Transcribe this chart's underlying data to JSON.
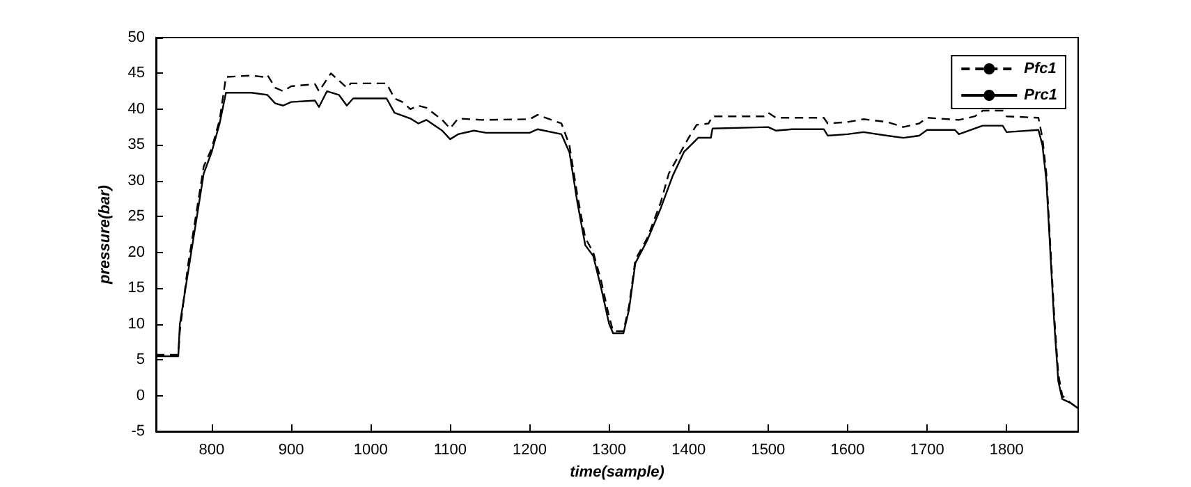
{
  "chart_data": {
    "type": "line",
    "xlabel": "time(sample)",
    "ylabel": "pressure(bar)",
    "xlim": [
      730,
      1890
    ],
    "xticks": [
      800,
      900,
      1000,
      1100,
      1200,
      1300,
      1400,
      1500,
      1600,
      1700,
      1800
    ],
    "ylim": [
      -5,
      50
    ],
    "yticks": [
      -5,
      0,
      5,
      10,
      15,
      20,
      25,
      30,
      35,
      40,
      45,
      50
    ],
    "grid": false,
    "legend": "top right",
    "marker": "none",
    "series": [
      {
        "name": "Pfc1",
        "color": "#000000",
        "line_style": "dashed",
        "x": [
          730,
          758,
          760,
          770,
          780,
          790,
          800,
          810,
          818,
          850,
          865,
          870,
          880,
          890,
          900,
          930,
          935,
          950,
          960,
          970,
          975,
          1020,
          1030,
          1040,
          1050,
          1060,
          1070,
          1090,
          1100,
          1110,
          1140,
          1200,
          1210,
          1240,
          1250,
          1260,
          1270,
          1280,
          1290,
          1300,
          1305,
          1318,
          1325,
          1333,
          1348,
          1365,
          1375,
          1390,
          1400,
          1410,
          1425,
          1430,
          1495,
          1500,
          1510,
          1530,
          1570,
          1575,
          1600,
          1620,
          1650,
          1670,
          1690,
          1700,
          1740,
          1760,
          1770,
          1795,
          1800,
          1840,
          1845,
          1850,
          1855,
          1860,
          1865,
          1870,
          1880,
          1890
        ],
        "values": [
          5.7,
          5.7,
          9,
          18,
          25,
          32,
          34.5,
          38.5,
          44.5,
          44.7,
          44.5,
          44.8,
          43,
          42.5,
          43.2,
          43.5,
          42.5,
          45,
          44,
          43,
          43.6,
          43.6,
          41.5,
          41,
          40,
          40.5,
          40.2,
          38.5,
          37.3,
          38.7,
          38.5,
          38.6,
          39.2,
          38,
          35,
          28,
          22,
          20,
          16,
          11,
          9,
          9,
          12.5,
          19,
          22,
          27,
          31,
          34,
          36,
          37.8,
          38,
          39,
          39,
          39.5,
          38.8,
          38.8,
          38.8,
          38,
          38.2,
          38.6,
          38.2,
          37.5,
          38,
          38.8,
          38.5,
          39,
          39.8,
          39.8,
          39,
          38.8,
          36,
          31,
          21,
          11,
          3,
          0,
          -1,
          -1.8
        ]
      },
      {
        "name": "Prc1",
        "color": "#000000",
        "line_style": "solid",
        "x": [
          730,
          758,
          760,
          770,
          780,
          790,
          800,
          810,
          818,
          850,
          870,
          880,
          890,
          900,
          930,
          935,
          945,
          960,
          970,
          978,
          1020,
          1030,
          1050,
          1060,
          1070,
          1090,
          1100,
          1110,
          1130,
          1145,
          1200,
          1210,
          1240,
          1250,
          1260,
          1270,
          1280,
          1290,
          1300,
          1305,
          1318,
          1325,
          1333,
          1348,
          1365,
          1380,
          1394,
          1412,
          1428,
          1430,
          1500,
          1510,
          1530,
          1570,
          1575,
          1600,
          1620,
          1650,
          1670,
          1690,
          1700,
          1735,
          1740,
          1760,
          1770,
          1795,
          1800,
          1840,
          1845,
          1850,
          1855,
          1860,
          1865,
          1870,
          1880,
          1890
        ],
        "values": [
          5.5,
          5.5,
          10,
          17,
          24,
          31,
          34,
          38,
          42.3,
          42.3,
          42,
          40.8,
          40.5,
          41,
          41.2,
          40.3,
          42.5,
          42,
          40.5,
          41.5,
          41.5,
          39.5,
          38.7,
          38,
          38.5,
          37,
          35.8,
          36.5,
          37,
          36.7,
          36.7,
          37.2,
          36.5,
          34,
          27,
          21,
          19.5,
          15,
          10,
          8.7,
          8.7,
          12,
          18.5,
          21.7,
          26.2,
          30.7,
          34,
          36,
          36,
          37.3,
          37.5,
          37,
          37.2,
          37.2,
          36.3,
          36.5,
          36.8,
          36.3,
          36,
          36.3,
          37.1,
          37.1,
          36.5,
          37.3,
          37.7,
          37.7,
          36.8,
          37.1,
          35,
          30,
          20,
          10,
          2,
          -0.5,
          -1,
          -1.8
        ]
      }
    ]
  }
}
